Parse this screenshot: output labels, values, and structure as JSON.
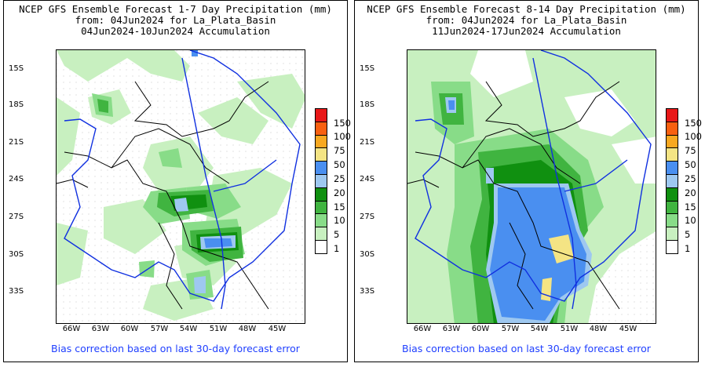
{
  "colors": {
    "scale": [
      "#ffffff",
      "#c8f0c0",
      "#88dc88",
      "#40b440",
      "#109010",
      "#9ec8f0",
      "#4a8ff0",
      "#f4e484",
      "#f8a820",
      "#f86010",
      "#e81818"
    ],
    "river": "#1030e0",
    "border": "#000000"
  },
  "legend": {
    "labels": [
      "1",
      "5",
      "10",
      "15",
      "20",
      "25",
      "50",
      "75",
      "100",
      "150"
    ]
  },
  "map_axes": {
    "lat_labels": [
      "15S",
      "18S",
      "21S",
      "24S",
      "27S",
      "30S",
      "33S"
    ],
    "lon_labels": [
      "66W",
      "63W",
      "60W",
      "57W",
      "54W",
      "51W",
      "48W",
      "45W"
    ]
  },
  "panels": [
    {
      "title": "NCEP GFS Ensemble Forecast 1-7 Day Precipitation (mm)",
      "subtitle": "from: 04Jun2024   for La_Plata_Basin",
      "period": "04Jun2024-10Jun2024 Accumulation",
      "footer": "Bias correction based on last 30-day forecast error"
    },
    {
      "title": "NCEP GFS Ensemble Forecast 8-14 Day Precipitation (mm)",
      "subtitle": "from: 04Jun2024   for La_Plata_Basin",
      "period": "11Jun2024-17Jun2024 Accumulation",
      "footer": "Bias correction based on last 30-day forecast error"
    }
  ]
}
